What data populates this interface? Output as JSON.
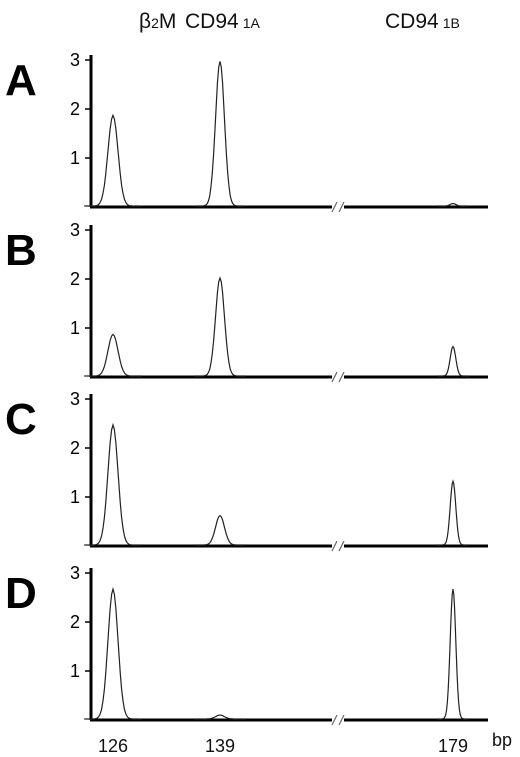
{
  "header": {
    "b2m_main": "β",
    "b2m_sub": "2",
    "b2m_suffix": "M",
    "cd94a_main": "CD94",
    "cd94a_sub": "1A",
    "cd94b_main": "CD94",
    "cd94b_sub": "1B"
  },
  "colors": {
    "trace": "#222222",
    "axis": "#000000"
  },
  "chart_data": [
    {
      "type": "line",
      "panel": "A",
      "ylim": [
        0,
        3
      ],
      "yticks": [
        "1",
        "2",
        "3"
      ],
      "x_break": true,
      "peaks": [
        {
          "fragment_bp": 126,
          "height": 1.85
        },
        {
          "fragment_bp": 139,
          "height": 2.95
        },
        {
          "fragment_bp": 179,
          "height": 0.05
        }
      ]
    },
    {
      "type": "line",
      "panel": "B",
      "ylim": [
        0,
        3
      ],
      "yticks": [
        "1",
        "2",
        "3"
      ],
      "x_break": true,
      "peaks": [
        {
          "fragment_bp": 126,
          "height": 0.85
        },
        {
          "fragment_bp": 139,
          "height": 2.0
        },
        {
          "fragment_bp": 179,
          "height": 0.6
        }
      ]
    },
    {
      "type": "line",
      "panel": "C",
      "ylim": [
        0,
        3
      ],
      "yticks": [
        "1",
        "2",
        "3"
      ],
      "x_break": true,
      "peaks": [
        {
          "fragment_bp": 126,
          "height": 2.45
        },
        {
          "fragment_bp": 139,
          "height": 0.6
        },
        {
          "fragment_bp": 179,
          "height": 1.3
        }
      ]
    },
    {
      "type": "line",
      "panel": "D",
      "ylim": [
        0,
        3
      ],
      "yticks": [
        "1",
        "2",
        "3"
      ],
      "x_break": true,
      "peaks": [
        {
          "fragment_bp": 126,
          "height": 2.65
        },
        {
          "fragment_bp": 139,
          "height": 0.08
        },
        {
          "fragment_bp": 179,
          "height": 2.65
        }
      ]
    }
  ],
  "x_axis": {
    "tick_labels": [
      "126",
      "139",
      "179"
    ],
    "unit": "bp"
  }
}
